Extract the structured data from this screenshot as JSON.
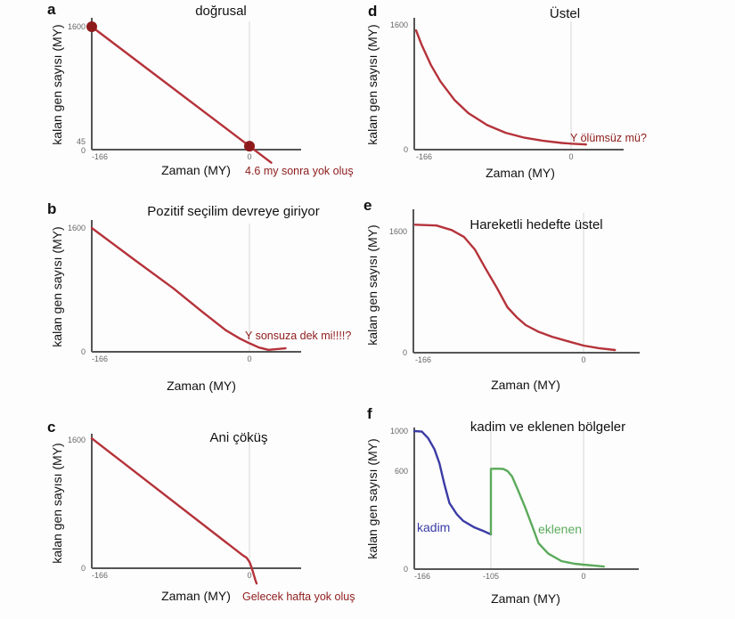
{
  "colors": {
    "curve": "#b5323a",
    "marker": "#8e1b1b",
    "annotation": "#8e1b1b",
    "kadim": "#3b3ba6",
    "eklenen": "#5caa5c",
    "axis": "#555555",
    "grid": "#dddddd"
  },
  "chart_data": [
    {
      "panel": "a",
      "type": "line",
      "title": "doğrusal",
      "xlabel": "Zaman (MY)",
      "ylabel": "kalan gen sayısı (MY)",
      "xticks": [
        "-166",
        "0"
      ],
      "yticks": [
        "0",
        "45",
        "1600"
      ],
      "gridlines_x": [
        0
      ],
      "series": [
        {
          "x": [
            -166,
            0,
            4.6,
            23
          ],
          "y": [
            1600,
            45,
            2,
            -170
          ]
        }
      ],
      "markers": [
        {
          "x": -166,
          "y": 1600
        },
        {
          "x": 0,
          "y": 45
        }
      ],
      "annotation": "4.6 my sonra yok oluş"
    },
    {
      "panel": "b",
      "type": "line",
      "title": "Pozitif seçilim devreye giriyor",
      "xlabel": "Zaman (MY)",
      "ylabel": "kalan gen sayısı (MY)",
      "xticks": [
        "-166",
        "0"
      ],
      "yticks": [
        "0",
        "1600"
      ],
      "gridlines_x": [
        0
      ],
      "series": [
        {
          "x": [
            -166,
            -120,
            -80,
            -50,
            -25,
            -10,
            0,
            10,
            20,
            38
          ],
          "y": [
            1600,
            1180,
            820,
            520,
            280,
            170,
            110,
            55,
            25,
            45
          ]
        }
      ],
      "annotation": "Y sonsuza dek mi!!!!?"
    },
    {
      "panel": "c",
      "type": "line",
      "title": "Ani çöküş",
      "xlabel": "Zaman (MY)",
      "ylabel": "kalan gen sayısı (MY)",
      "xticks": [
        "-166",
        "0"
      ],
      "yticks": [
        "0",
        "1600"
      ],
      "gridlines_x": [
        0
      ],
      "series": [
        {
          "x": [
            -166,
            -8,
            -3,
            0,
            2,
            4,
            6,
            7.5
          ],
          "y": [
            1620,
            170,
            130,
            80,
            20,
            -60,
            -140,
            -190
          ]
        }
      ],
      "annotation": "Gelecek hafta yok oluş"
    },
    {
      "panel": "d",
      "type": "line",
      "title": "Üstel",
      "xlabel": "Zaman (MY)",
      "ylabel": "kalan gen sayısı (MY)",
      "xticks": [
        "-166",
        "0"
      ],
      "yticks": [
        "0",
        "1600"
      ],
      "gridlines_x": [
        0
      ],
      "series": [
        {
          "x": [
            -166,
            -160,
            -150,
            -140,
            -125,
            -110,
            -90,
            -70,
            -50,
            -30,
            -10,
            0,
            16
          ],
          "y": [
            1530,
            1344,
            1083,
            876,
            639,
            469,
            315,
            216,
            153,
            113,
            86,
            77,
            66
          ]
        }
      ],
      "annotation": "Y ölümsüz mü?"
    },
    {
      "panel": "e",
      "type": "line",
      "title": "Hareketli hedefte üstel",
      "xlabel": "Zaman (MY)",
      "ylabel": "kalan gen sayısı (MY)",
      "xticks": [
        "-166",
        "0"
      ],
      "yticks": [
        "0",
        "1600"
      ],
      "gridlines_x": [
        0
      ],
      "series": [
        {
          "x": [
            -166,
            -145,
            -130,
            -118,
            -107,
            -97,
            -86,
            -75,
            -66,
            -57,
            -45,
            -31,
            -15,
            0,
            15,
            31
          ],
          "y": [
            1690,
            1680,
            1620,
            1530,
            1360,
            1120,
            870,
            600,
            470,
            365,
            280,
            210,
            150,
            94,
            60,
            35
          ]
        }
      ]
    },
    {
      "panel": "f",
      "type": "line",
      "title": "kadim ve eklenen bölgeler",
      "xlabel": "Zaman (MY)",
      "ylabel": "kalan gen sayısı (MY)",
      "xticks": [
        "-166",
        "-105",
        "0"
      ],
      "yticks": [
        "0",
        "600",
        "1000"
      ],
      "gridlines_x": [
        -105,
        0
      ],
      "series": [
        {
          "name": "kadim",
          "x": [
            -166,
            -160,
            -155,
            -150,
            -146,
            -142,
            -138,
            -132,
            -127,
            -118,
            -110,
            -105
          ],
          "y": [
            1000,
            995,
            930,
            820,
            680,
            520,
            404,
            335,
            295,
            255,
            230,
            213
          ]
        },
        {
          "name": "eklenen",
          "x": [
            -105,
            -105,
            -100,
            -91,
            -86,
            -81,
            -74,
            -66,
            -58,
            -51,
            -40,
            -25,
            -10,
            0,
            23
          ],
          "y": [
            213,
            622,
            625,
            622,
            600,
            567,
            480,
            376,
            260,
            158,
            95,
            49,
            33,
            27,
            16
          ]
        }
      ]
    }
  ]
}
